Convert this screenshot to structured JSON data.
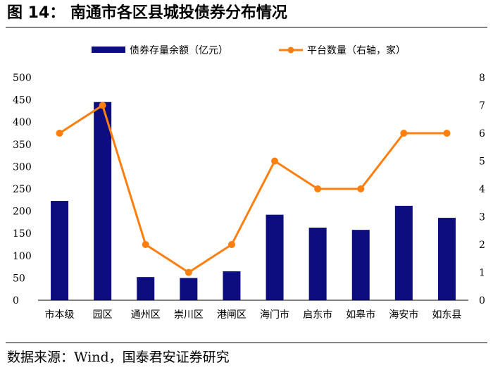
{
  "figure": {
    "title": "图 14：  南通市各区县城投债券分布情况",
    "source": "数据来源：Wind，国泰君安证券研究"
  },
  "chart_data": {
    "type": "bar",
    "categories": [
      "市本级",
      "园区",
      "通州区",
      "崇川区",
      "港闸区",
      "海门市",
      "启东市",
      "如皋市",
      "海安市",
      "如东县"
    ],
    "series": [
      {
        "name": "债券存量余额（亿元）",
        "type": "bar",
        "axis": "left",
        "color": "#0d0d80",
        "values": [
          223,
          445,
          52,
          50,
          65,
          192,
          163,
          158,
          212,
          185
        ]
      },
      {
        "name": "平台数量（右轴，家）",
        "type": "line",
        "axis": "right",
        "color": "#ff7f0e",
        "values": [
          6,
          7,
          2,
          1,
          2,
          5,
          4,
          4,
          6,
          6
        ]
      }
    ],
    "y_left": {
      "min": 0,
      "max": 500,
      "ticks": [
        0,
        50,
        100,
        150,
        200,
        250,
        300,
        350,
        400,
        450,
        500
      ]
    },
    "y_right": {
      "min": 0,
      "max": 8,
      "ticks": [
        0,
        1,
        2,
        3,
        4,
        5,
        6,
        7,
        8
      ]
    },
    "legend_position": "top",
    "grid": false
  }
}
